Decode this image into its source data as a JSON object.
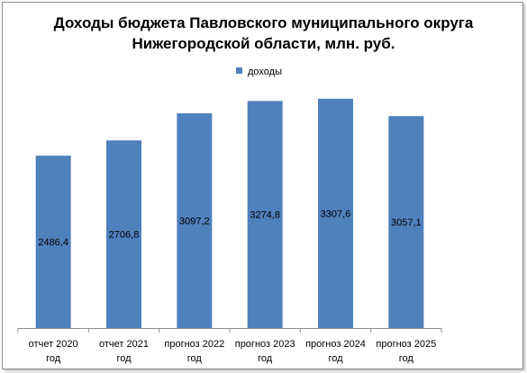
{
  "chart_data": {
    "type": "bar",
    "title_lines": [
      "Доходы бюджета Павловского муниципального округа",
      "Нижегородской области,  млн. руб."
    ],
    "categories": [
      [
        "отчет 2020",
        "год"
      ],
      [
        "отчет 2021",
        "год"
      ],
      [
        "прогноз 2022",
        "год"
      ],
      [
        "прогноз 2023",
        "год"
      ],
      [
        "прогноз 2024",
        "год"
      ],
      [
        "прогноз 2025",
        "год"
      ]
    ],
    "series": [
      {
        "name": "доходы",
        "color": "#4f81bd",
        "values": [
          2486.4,
          2706.8,
          3097.2,
          3274.8,
          3307.6,
          3057.1
        ],
        "labels": [
          "2486,4",
          "2706,8",
          "3097,2",
          "3274,8",
          "3307,6",
          "3057,1"
        ]
      }
    ],
    "ylim": [
      0,
      3500
    ],
    "grid": false,
    "legend": "top-center"
  }
}
